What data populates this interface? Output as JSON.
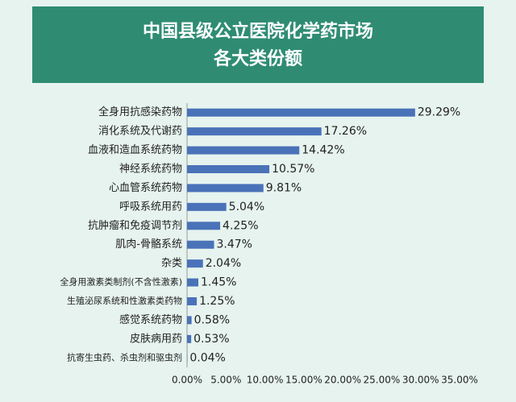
{
  "chart_data": {
    "type": "bar",
    "orientation": "horizontal",
    "title": [
      "中国县级公立医院化学药市场",
      "各大类份额"
    ],
    "categories": [
      "全身用抗感染药物",
      "消化系统及代谢药",
      "血液和造血系统药物",
      "神经系统药物",
      "心血管系统药物",
      "呼吸系统用药",
      "抗肿瘤和免疫调节剂",
      "肌肉-骨骼系统",
      "杂类",
      "全身用激素类制剂(不含性激素)",
      "生殖泌尿系统和性激素类药物",
      "感觉系统药物",
      "皮肤病用药",
      "抗寄生虫药、杀虫剂和驱虫剂"
    ],
    "values": [
      29.29,
      17.26,
      14.42,
      10.57,
      9.81,
      5.04,
      4.25,
      3.47,
      2.04,
      1.45,
      1.25,
      0.58,
      0.53,
      0.04
    ],
    "value_labels": [
      "29.29%",
      "17.26%",
      "14.42%",
      "10.57%",
      "9.81%",
      "5.04%",
      "4.25%",
      "3.47%",
      "2.04%",
      "1.45%",
      "1.25%",
      "0.58%",
      "0.53%",
      "0.04%"
    ],
    "color": "#4a72b8",
    "xlim": [
      0,
      35
    ],
    "xticks": [
      {
        "value": 0,
        "label": "0.00%"
      },
      {
        "value": 5,
        "label": "5.00%"
      },
      {
        "value": 10,
        "label": "10.00%"
      },
      {
        "value": 15,
        "label": "15.00%"
      },
      {
        "value": 20,
        "label": "20.00%"
      },
      {
        "value": 25,
        "label": "25.00%"
      },
      {
        "value": 30,
        "label": "30.00%"
      },
      {
        "value": 35,
        "label": "35.00%"
      }
    ],
    "grid": false
  }
}
